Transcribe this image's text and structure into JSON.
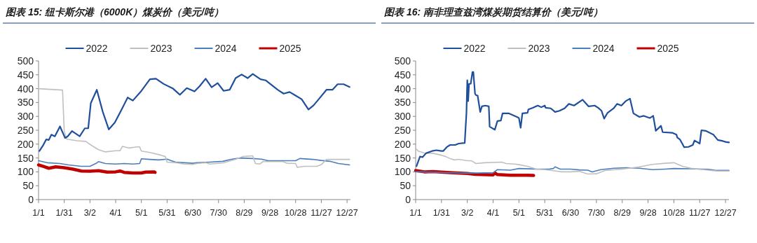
{
  "chart_data": [
    {
      "type": "line",
      "title": "图表 15: 纽卡斯尔港（6000K）煤炭价（美元/吨）",
      "legend": "top",
      "xlim": [
        "--01-01",
        "--12-31"
      ],
      "ylim": [
        0,
        500
      ],
      "yticks": [
        0,
        50,
        100,
        150,
        200,
        250,
        300,
        350,
        400,
        450,
        500
      ],
      "xticks": [
        {
          "value": "--01-01",
          "label": "1/1"
        },
        {
          "value": "--01-31",
          "label": "1/31"
        },
        {
          "value": "--03-02",
          "label": "3/2"
        },
        {
          "value": "--04-01",
          "label": "4/1"
        },
        {
          "value": "--05-01",
          "label": "5/1"
        },
        {
          "value": "--05-31",
          "label": "5/31"
        },
        {
          "value": "--06-30",
          "label": "6/30"
        },
        {
          "value": "--07-30",
          "label": "7/30"
        },
        {
          "value": "--08-29",
          "label": "8/29"
        },
        {
          "value": "--09-28",
          "label": "9/28"
        },
        {
          "value": "--10-28",
          "label": "10/28"
        },
        {
          "value": "--11-27",
          "label": "11/27"
        },
        {
          "value": "--12-27",
          "label": "12/27"
        }
      ],
      "series": [
        {
          "name": "2022",
          "color": "#1f4e9c",
          "x": [
            "--01-02",
            "--01-06",
            "--01-10",
            "--01-13",
            "--01-16",
            "--01-20",
            "--01-26",
            "--02-01",
            "--02-04",
            "--02-09",
            "--02-18",
            "--02-24",
            "--02-28",
            "--03-03",
            "--03-10",
            "--03-17",
            "--03-24",
            "--03-31",
            "--04-08",
            "--04-15",
            "--04-21",
            "--04-30",
            "--05-11",
            "--05-18",
            "--05-27",
            "--06-07",
            "--06-15",
            "--06-23",
            "--07-02",
            "--07-08",
            "--07-15",
            "--07-22",
            "--07-29",
            "--08-05",
            "--08-12",
            "--08-19",
            "--08-26",
            "--09-02",
            "--09-08",
            "--09-17",
            "--09-23",
            "--09-30",
            "--10-07",
            "--10-14",
            "--10-21",
            "--10-28",
            "--11-04",
            "--11-12",
            "--11-18",
            "--11-24",
            "--12-03",
            "--12-10",
            "--12-16",
            "--12-23",
            "--12-30"
          ],
          "values": [
            175,
            194,
            217,
            215,
            234,
            228,
            264,
            222,
            228,
            247,
            228,
            257,
            257,
            348,
            396,
            316,
            253,
            278,
            325,
            368,
            357,
            388,
            434,
            436,
            417,
            400,
            378,
            402,
            390,
            409,
            436,
            405,
            420,
            392,
            396,
            438,
            451,
            438,
            453,
            434,
            430,
            413,
            396,
            382,
            388,
            375,
            362,
            325,
            340,
            362,
            396,
            396,
            416,
            416,
            406
          ]
        },
        {
          "name": "2023",
          "color": "#c0c0c0",
          "x": [
            "--01-01",
            "--01-29",
            "--01-31",
            "--02-03",
            "--02-15",
            "--02-25",
            "--03-04",
            "--03-12",
            "--03-20",
            "--04-01",
            "--04-06",
            "--04-09",
            "--04-16",
            "--04-26",
            "--04-29",
            "--05-01",
            "--05-11",
            "--05-24",
            "--05-29",
            "--05-31",
            "--06-10",
            "--06-20",
            "--06-30",
            "--07-05",
            "--07-15",
            "--07-20",
            "--08-04",
            "--08-19",
            "--08-27",
            "--09-08",
            "--09-11",
            "--09-16",
            "--09-20",
            "--10-13",
            "--10-18",
            "--10-28",
            "--10-30",
            "--11-07",
            "--11-22",
            "--11-27",
            "--12-03",
            "--12-12",
            "--12-30"
          ],
          "values": [
            400,
            395,
            245,
            218,
            212,
            210,
            195,
            180,
            172,
            176,
            176,
            192,
            186,
            190,
            190,
            175,
            170,
            160,
            155,
            135,
            133,
            128,
            127,
            130,
            133,
            128,
            132,
            145,
            155,
            158,
            130,
            128,
            137,
            137,
            131,
            130,
            116,
            120,
            120,
            126,
            145,
            145,
            145
          ]
        },
        {
          "name": "2024",
          "color": "#4a7ebb",
          "x": [
            "--01-01",
            "--01-11",
            "--01-26",
            "--02-05",
            "--02-20",
            "--03-02",
            "--03-10",
            "--03-12",
            "--03-20",
            "--04-01",
            "--04-11",
            "--04-21",
            "--04-29",
            "--05-01",
            "--05-11",
            "--05-21",
            "--05-31",
            "--06-05",
            "--06-10",
            "--06-20",
            "--06-30",
            "--07-05",
            "--07-20",
            "--08-04",
            "--08-14",
            "--08-24",
            "--09-08",
            "--09-18",
            "--09-26",
            "--10-13",
            "--10-28",
            "--11-02",
            "--11-17",
            "--11-27",
            "--12-07",
            "--12-17",
            "--12-30"
          ],
          "values": [
            140,
            133,
            130,
            125,
            120,
            120,
            132,
            137,
            130,
            128,
            130,
            128,
            130,
            147,
            145,
            143,
            146,
            140,
            135,
            133,
            131,
            133,
            135,
            138,
            145,
            150,
            148,
            146,
            140,
            140,
            140,
            148,
            145,
            141,
            138,
            130,
            125
          ]
        },
        {
          "name": "2025",
          "color": "#c00000",
          "x": [
            "--01-01",
            "--01-06",
            "--01-13",
            "--01-21",
            "--01-31",
            "--02-10",
            "--02-20",
            "--03-02",
            "--03-12",
            "--03-22",
            "--04-01",
            "--04-06",
            "--04-11",
            "--04-21",
            "--05-01",
            "--05-06",
            "--05-16",
            "--05-17"
          ],
          "values": [
            125,
            120,
            113,
            118,
            115,
            110,
            103,
            102,
            104,
            99,
            100,
            103,
            98,
            96,
            96,
            99,
            100,
            98
          ]
        }
      ]
    },
    {
      "type": "line",
      "title": "图表 16: 南非理查兹湾煤炭期货结算价（美元/吨）",
      "legend": "top",
      "xlim": [
        "--01-01",
        "--12-31"
      ],
      "ylim": [
        0,
        500
      ],
      "yticks": [
        0,
        50,
        100,
        150,
        200,
        250,
        300,
        350,
        400,
        450,
        500
      ],
      "xticks": [
        {
          "value": "--01-01",
          "label": "1/1"
        },
        {
          "value": "--01-31",
          "label": "1/31"
        },
        {
          "value": "--03-02",
          "label": "3/2"
        },
        {
          "value": "--04-01",
          "label": "4/1"
        },
        {
          "value": "--05-01",
          "label": "5/1"
        },
        {
          "value": "--05-31",
          "label": "5/31"
        },
        {
          "value": "--06-30",
          "label": "6/30"
        },
        {
          "value": "--07-30",
          "label": "7/30"
        },
        {
          "value": "--08-29",
          "label": "8/29"
        },
        {
          "value": "--09-28",
          "label": "9/28"
        },
        {
          "value": "--10-28",
          "label": "10/28"
        },
        {
          "value": "--11-27",
          "label": "11/27"
        },
        {
          "value": "--12-27",
          "label": "12/27"
        }
      ],
      "series": [
        {
          "name": "2022",
          "color": "#1f4e9c",
          "x": [
            "--01-02",
            "--01-06",
            "--01-09",
            "--01-13",
            "--01-20",
            "--01-25",
            "--01-31",
            "--02-02",
            "--02-06",
            "--02-10",
            "--02-16",
            "--02-20",
            "--02-27",
            "--03-01",
            "--03-02",
            "--03-03",
            "--03-04",
            "--03-06",
            "--03-08",
            "--03-09",
            "--03-11",
            "--03-12",
            "--03-14",
            "--03-17",
            "--03-19",
            "--03-23",
            "--03-27",
            "--03-28",
            "--04-03",
            "--04-06",
            "--04-10",
            "--04-12",
            "--04-19",
            "--04-25",
            "--04-30",
            "--05-01",
            "--05-03",
            "--05-05",
            "--05-11",
            "--05-12",
            "--05-17",
            "--05-23",
            "--05-27",
            "--05-31",
            "--06-01",
            "--06-07",
            "--06-12",
            "--06-17",
            "--06-23",
            "--06-28",
            "--07-04",
            "--07-14",
            "--07-21",
            "--07-28",
            "--08-01",
            "--08-05",
            "--08-08",
            "--08-12",
            "--08-19",
            "--08-23",
            "--08-28",
            "--09-02",
            "--09-07",
            "--09-11",
            "--09-18",
            "--09-23",
            "--09-30",
            "--10-04",
            "--10-07",
            "--10-13",
            "--10-15",
            "--10-26",
            "--10-31",
            "--11-01",
            "--11-04",
            "--11-09",
            "--11-14",
            "--11-19",
            "--11-21",
            "--11-27",
            "--11-29",
            "--12-04",
            "--12-13",
            "--12-18",
            "--12-24",
            "--12-27",
            "--12-31"
          ],
          "values": [
            120,
            155,
            153,
            167,
            175,
            178,
            175,
            175,
            189,
            197,
            197,
            202,
            204,
            311,
            430,
            355,
            417,
            418,
            460,
            460,
            382,
            377,
            375,
            316,
            336,
            339,
            336,
            263,
            252,
            283,
            285,
            311,
            311,
            303,
            296,
            294,
            259,
            311,
            313,
            325,
            331,
            339,
            333,
            339,
            331,
            329,
            316,
            320,
            329,
            345,
            339,
            360,
            336,
            339,
            331,
            320,
            292,
            313,
            329,
            345,
            339,
            355,
            364,
            311,
            298,
            302,
            294,
            302,
            248,
            266,
            243,
            241,
            234,
            224,
            217,
            189,
            190,
            197,
            213,
            202,
            250,
            248,
            234,
            215,
            211,
            208,
            206
          ]
        },
        {
          "name": "2023",
          "color": "#c0c0c0",
          "x": [
            "--01-01",
            "--01-04",
            "--01-11",
            "--01-21",
            "--01-31",
            "--02-05",
            "--02-10",
            "--02-15",
            "--02-20",
            "--03-02",
            "--03-07",
            "--03-12",
            "--03-22",
            "--04-11",
            "--04-16",
            "--04-26",
            "--05-01",
            "--05-11",
            "--05-21",
            "--05-31",
            "--06-10",
            "--06-20",
            "--06-30",
            "--07-10",
            "--07-20",
            "--07-30",
            "--08-09",
            "--08-29",
            "--09-18",
            "--10-03",
            "--10-18",
            "--10-28",
            "--11-07",
            "--11-17",
            "--12-07",
            "--12-17",
            "--12-31"
          ],
          "values": [
            185,
            175,
            168,
            167,
            160,
            155,
            148,
            143,
            145,
            140,
            140,
            130,
            133,
            135,
            130,
            128,
            126,
            120,
            110,
            108,
            104,
            100,
            100,
            102,
            92,
            93,
            105,
            110,
            118,
            127,
            131,
            133,
            120,
            113,
            106,
            103,
            103
          ]
        },
        {
          "name": "2024",
          "color": "#4a7ebb",
          "x": [
            "--01-01",
            "--01-31",
            "--03-02",
            "--04-01",
            "--04-06",
            "--04-21",
            "--05-01",
            "--05-21",
            "--06-05",
            "--06-10",
            "--06-12",
            "--06-18",
            "--06-30",
            "--07-10",
            "--07-20",
            "--07-25",
            "--08-04",
            "--08-19",
            "--09-03",
            "--09-18",
            "--10-03",
            "--10-18",
            "--10-28",
            "--11-17",
            "--12-07",
            "--12-17",
            "--12-31"
          ],
          "values": [
            100,
            98,
            95,
            97,
            108,
            106,
            112,
            110,
            110,
            112,
            118,
            110,
            110,
            107,
            106,
            100,
            108,
            113,
            115,
            113,
            108,
            110,
            112,
            111,
            109,
            105,
            105
          ]
        },
        {
          "name": "2025",
          "color": "#c00000",
          "x": [
            "--01-01",
            "--01-11",
            "--01-21",
            "--02-10",
            "--03-02",
            "--03-12",
            "--04-01",
            "--04-03",
            "--04-06",
            "--04-21",
            "--05-11",
            "--05-18"
          ],
          "values": [
            105,
            100,
            101,
            97,
            94,
            91,
            89,
            96,
            90,
            88,
            88,
            87
          ]
        }
      ]
    }
  ]
}
